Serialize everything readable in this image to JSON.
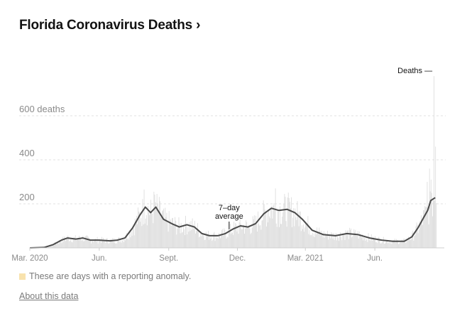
{
  "header": {
    "title": "Florida Coronavirus Deaths",
    "chevron": "›"
  },
  "legend": {
    "anomaly_text": "These are days with a reporting anomaly.",
    "anomaly_color": "#f8e2ad"
  },
  "footer": {
    "about_link": "About this data"
  },
  "colors": {
    "line": "#4a4a4a",
    "bars": "#dcdcdc",
    "grid": "#e2e2e2",
    "axis": "#cfcfcf"
  },
  "chart_data": {
    "type": "bar",
    "title": "Florida Coronavirus Deaths",
    "x_range": [
      "2020-03-01",
      "2021-09-01"
    ],
    "ylim": [
      0,
      800
    ],
    "y_ticks": [
      {
        "value": 200,
        "label": "200"
      },
      {
        "value": 400,
        "label": "400"
      },
      {
        "value": 600,
        "label": "600 deaths"
      }
    ],
    "x_ticks": [
      {
        "date": "2020-03-01",
        "label": "Mar. 2020"
      },
      {
        "date": "2020-06-01",
        "label": "Jun."
      },
      {
        "date": "2020-09-01",
        "label": "Sept."
      },
      {
        "date": "2020-12-01",
        "label": "Dec."
      },
      {
        "date": "2021-03-01",
        "label": "Mar. 2021"
      },
      {
        "date": "2021-06-01",
        "label": "Jun."
      }
    ],
    "series": [
      {
        "name": "7-day average",
        "type": "line",
        "points": [
          [
            "2020-03-01",
            0
          ],
          [
            "2020-03-20",
            2
          ],
          [
            "2020-04-01",
            15
          ],
          [
            "2020-04-12",
            35
          ],
          [
            "2020-04-20",
            45
          ],
          [
            "2020-05-01",
            40
          ],
          [
            "2020-05-10",
            45
          ],
          [
            "2020-05-20",
            35
          ],
          [
            "2020-06-01",
            35
          ],
          [
            "2020-06-15",
            32
          ],
          [
            "2020-06-25",
            35
          ],
          [
            "2020-07-05",
            45
          ],
          [
            "2020-07-15",
            90
          ],
          [
            "2020-07-25",
            150
          ],
          [
            "2020-08-01",
            185
          ],
          [
            "2020-08-08",
            160
          ],
          [
            "2020-08-15",
            185
          ],
          [
            "2020-08-25",
            130
          ],
          [
            "2020-09-05",
            110
          ],
          [
            "2020-09-15",
            95
          ],
          [
            "2020-09-25",
            105
          ],
          [
            "2020-10-05",
            95
          ],
          [
            "2020-10-15",
            65
          ],
          [
            "2020-10-25",
            55
          ],
          [
            "2020-11-05",
            55
          ],
          [
            "2020-11-15",
            65
          ],
          [
            "2020-11-25",
            85
          ],
          [
            "2020-12-05",
            100
          ],
          [
            "2020-12-15",
            95
          ],
          [
            "2020-12-25",
            110
          ],
          [
            "2021-01-05",
            155
          ],
          [
            "2021-01-15",
            180
          ],
          [
            "2021-01-25",
            170
          ],
          [
            "2021-02-05",
            175
          ],
          [
            "2021-02-15",
            160
          ],
          [
            "2021-02-25",
            130
          ],
          [
            "2021-03-10",
            80
          ],
          [
            "2021-03-25",
            60
          ],
          [
            "2021-04-10",
            55
          ],
          [
            "2021-04-25",
            65
          ],
          [
            "2021-05-10",
            60
          ],
          [
            "2021-05-25",
            45
          ],
          [
            "2021-06-10",
            35
          ],
          [
            "2021-06-25",
            30
          ],
          [
            "2021-07-10",
            30
          ],
          [
            "2021-07-20",
            50
          ],
          [
            "2021-07-28",
            90
          ],
          [
            "2021-08-05",
            140
          ],
          [
            "2021-08-10",
            170
          ],
          [
            "2021-08-14",
            215
          ],
          [
            "2021-08-20",
            228
          ]
        ]
      },
      {
        "name": "Deaths",
        "type": "bar",
        "note": "daily values, approximated",
        "peaks": [
          [
            "2021-08-18",
            780
          ],
          [
            "2021-08-20",
            460
          ],
          [
            "2021-08-12",
            360
          ],
          [
            "2021-08-09",
            300
          ],
          [
            "2021-08-15",
            250
          ],
          [
            "2020-07-30",
            265
          ],
          [
            "2020-08-12",
            255
          ],
          [
            "2021-01-20",
            270
          ]
        ]
      }
    ],
    "annotations": [
      {
        "text_lines": [
          "7–day",
          "average"
        ],
        "date": "2020-11-20",
        "value": 75
      },
      {
        "text": "Deaths —",
        "date": "2021-08-18",
        "value": 780
      }
    ]
  }
}
